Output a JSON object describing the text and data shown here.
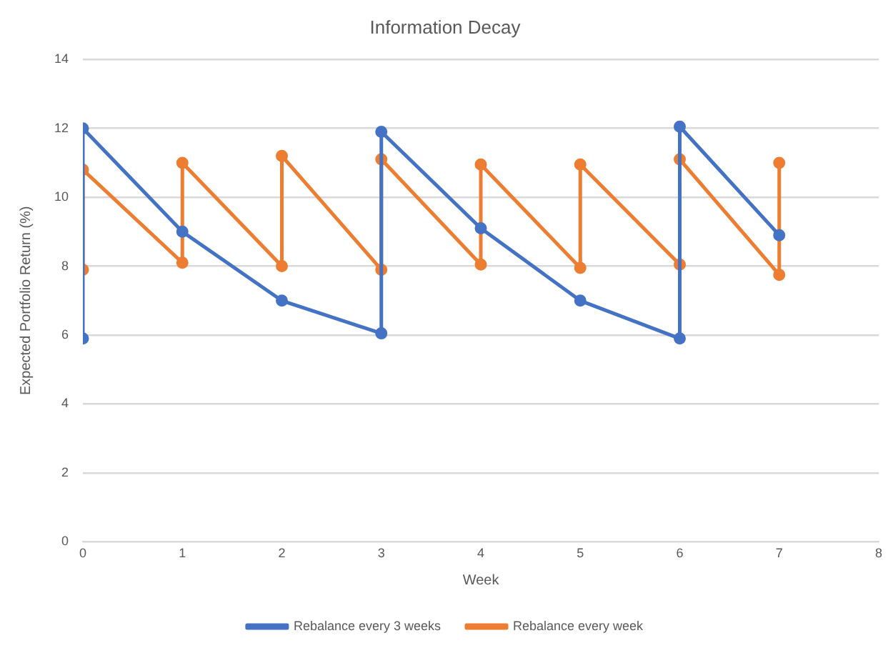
{
  "chart_data": {
    "type": "line",
    "title": "Information Decay",
    "xlabel": "Week",
    "ylabel": "Expected Portfolio Return (%)",
    "series": [
      {
        "name": "Rebalance every 3 weeks",
        "color": "#4472c4",
        "x": [
          0,
          0,
          1,
          2,
          3,
          3,
          4,
          5,
          6,
          6,
          7
        ],
        "values": [
          5.9,
          12,
          9,
          7,
          6.05,
          11.9,
          9.1,
          7,
          5.9,
          12.05,
          8.9
        ]
      },
      {
        "name": "Rebalance every week",
        "color": "#ed7d31",
        "x": [
          0,
          0,
          1,
          1,
          2,
          2,
          3,
          3,
          4,
          4,
          5,
          5,
          6,
          6,
          7,
          7
        ],
        "values": [
          7.9,
          10.8,
          8.1,
          11,
          8,
          11.2,
          7.9,
          11.1,
          8.05,
          10.95,
          7.95,
          10.95,
          8.05,
          11.1,
          7.75,
          11
        ]
      }
    ],
    "xlim": [
      0,
      8
    ],
    "xticks": [
      0,
      1,
      2,
      3,
      4,
      5,
      6,
      7,
      8
    ],
    "ylim": [
      0,
      14
    ],
    "yticks": [
      0,
      2,
      4,
      6,
      8,
      10,
      12,
      14
    ],
    "grid": "y",
    "legend": "bottom",
    "marker": "circle",
    "line_style": "solid"
  }
}
